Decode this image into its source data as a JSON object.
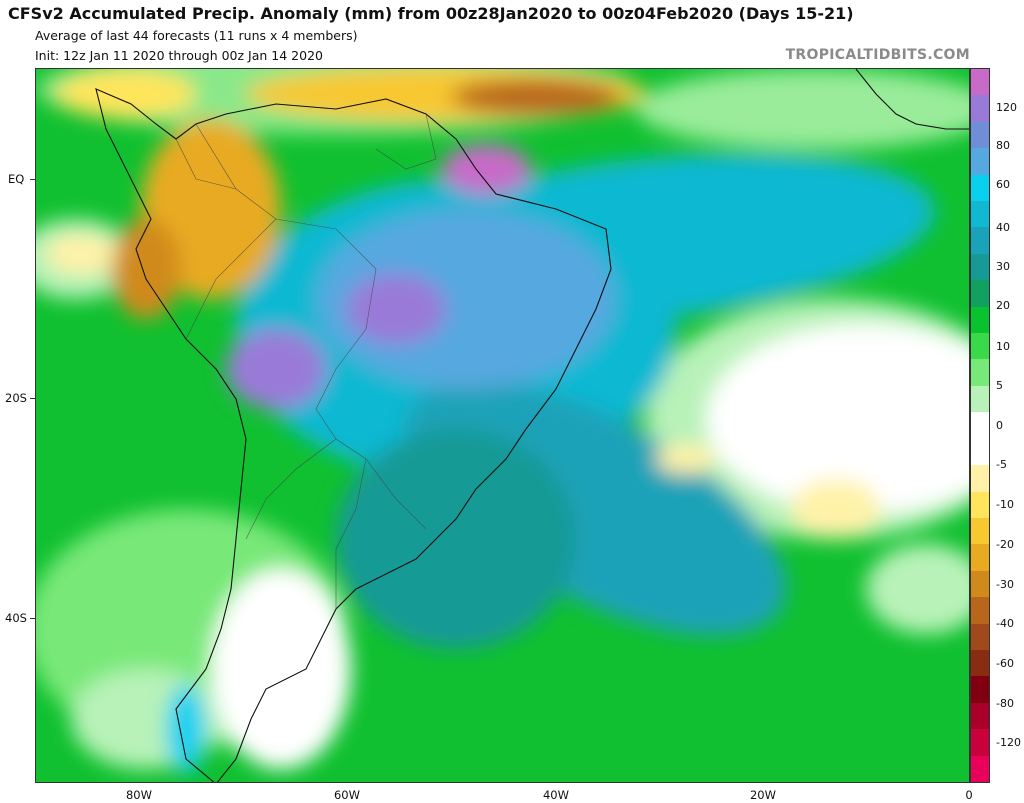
{
  "header": {
    "title": "CFSv2 Accumulated Precip. Anomaly (mm) from 00z28Jan2020 to 00z04Feb2020 (Days 15-21)",
    "subtitle1": "Average of last 44 forecasts (11 runs x 4 members)",
    "subtitle2": "Init: 12z Jan 11 2020 through 00z Jan 14 2020",
    "brand": "TROPICALTIDBITS.COM"
  },
  "map": {
    "lat_labels": [
      "EQ",
      "20S",
      "40S"
    ],
    "lon_labels": [
      "80W",
      "60W",
      "40W",
      "20W",
      "0"
    ]
  },
  "colorbar": {
    "labels": [
      "120",
      "80",
      "60",
      "40",
      "30",
      "20",
      "10",
      "5",
      "0",
      "-5",
      "-10",
      "-20",
      "-30",
      "-40",
      "-60",
      "-80",
      "-120"
    ],
    "colors": [
      "#c86ac8",
      "#9a7ad8",
      "#6e8ed8",
      "#56a8e0",
      "#0ad0f0",
      "#10b8d2",
      "#1aa2b8",
      "#159a96",
      "#10a060",
      "#08c230",
      "#3ad94a",
      "#78e878",
      "#b8f2b8",
      "#ffffff",
      "#ffffff",
      "#fff2a8",
      "#ffe55c",
      "#f8c830",
      "#e8aa20",
      "#d08a1c",
      "#b8661c",
      "#a04a1c",
      "#8a2c12",
      "#800010",
      "#a80028",
      "#c8003c",
      "#e8005a"
    ]
  }
}
